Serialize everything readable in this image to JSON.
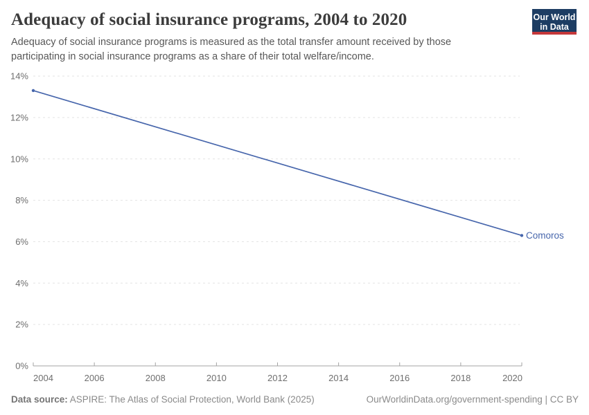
{
  "header": {
    "title": "Adequacy of social insurance programs, 2004 to 2020",
    "subtitle": "Adequacy of social insurance programs is measured as the total transfer amount received by those participating in social insurance programs as a share of their total welfare/income.",
    "logo": {
      "line1": "Our World",
      "line2": "in Data"
    }
  },
  "chart_data": {
    "type": "line",
    "title": "Adequacy of social insurance programs, 2004 to 2020",
    "x": [
      2004,
      2020
    ],
    "series": [
      {
        "name": "Comoros",
        "values": [
          13.3,
          6.3
        ]
      }
    ],
    "xlim": [
      2004,
      2020
    ],
    "ylim": [
      0,
      14
    ],
    "x_ticks": [
      2004,
      2006,
      2008,
      2010,
      2012,
      2014,
      2016,
      2018,
      2020
    ],
    "y_ticks": [
      0,
      2,
      4,
      6,
      8,
      10,
      12,
      14
    ],
    "y_tick_suffix": "%",
    "xlabel": "",
    "ylabel": "",
    "grid": "horizontal-dashed",
    "legend_position": "end-of-line-label",
    "end_label": "Comoros"
  },
  "footer": {
    "source_label": "Data source:",
    "source_text": " ASPIRE: The Atlas of Social Protection, World Bank (2025)",
    "attribution": "OurWorldinData.org/government-spending | CC BY"
  },
  "colors": {
    "line": "#4766ac",
    "grid": "#e3e3e3",
    "axis": "#a3a3a3",
    "tick_label": "#6e6e6e",
    "title": "#3c3c3c",
    "subtitle": "#575757",
    "footer_text": "#8a8a8a",
    "logo_bg": "#1d3d63",
    "logo_red": "#c5383a"
  }
}
